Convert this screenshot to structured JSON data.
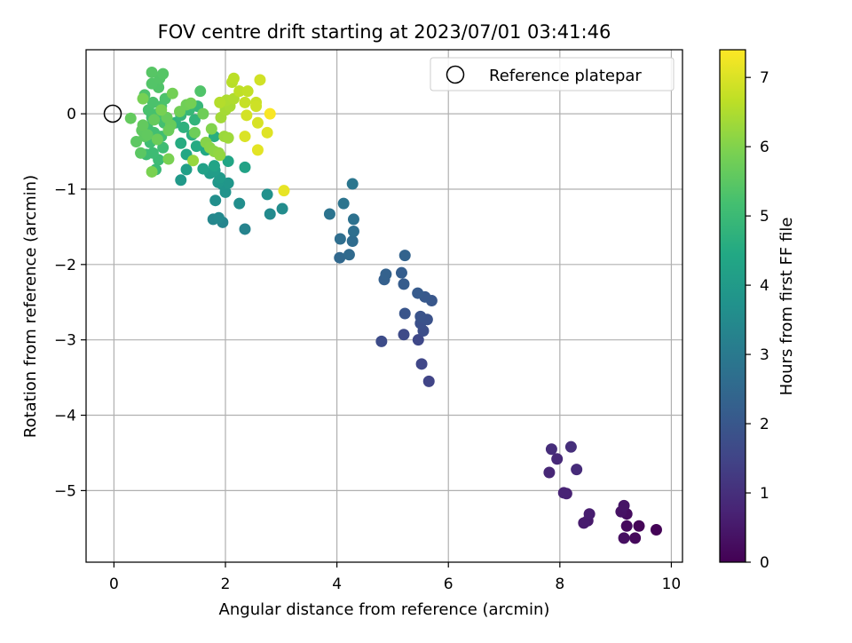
{
  "chart_data": {
    "type": "scatter",
    "title": "FOV centre drift starting at 2023/07/01 03:41:46",
    "xlabel": "Angular distance from reference (arcmin)",
    "ylabel": "Rotation from reference (arcmin)",
    "xlim": [
      -0.5,
      10.2
    ],
    "ylim": [
      -5.95,
      0.85
    ],
    "xticks": [
      0,
      2,
      4,
      6,
      8,
      10
    ],
    "yticks": [
      0,
      -1,
      -2,
      -3,
      -4,
      -5
    ],
    "grid": true,
    "legend": {
      "position": "top-right",
      "entries": [
        "Reference platepar"
      ]
    },
    "reference_point": {
      "x": 0,
      "y": 0
    },
    "colorbar": {
      "label": "Hours from first FF file",
      "colormap": "viridis",
      "range": [
        0,
        7.4
      ],
      "ticks": [
        0,
        1,
        2,
        3,
        4,
        5,
        6,
        7
      ]
    },
    "points": [
      {
        "x": 9.73,
        "y": -5.52,
        "c": 0.05
      },
      {
        "x": 9.42,
        "y": -5.47,
        "c": 0.1
      },
      {
        "x": 9.35,
        "y": -5.63,
        "c": 0.15
      },
      {
        "x": 9.2,
        "y": -5.47,
        "c": 0.2
      },
      {
        "x": 9.2,
        "y": -5.31,
        "c": 0.25
      },
      {
        "x": 9.15,
        "y": -5.63,
        "c": 0.3
      },
      {
        "x": 9.1,
        "y": -5.28,
        "c": 0.35
      },
      {
        "x": 9.15,
        "y": -5.2,
        "c": 0.4
      },
      {
        "x": 8.5,
        "y": -5.4,
        "c": 0.5
      },
      {
        "x": 8.43,
        "y": -5.43,
        "c": 0.55
      },
      {
        "x": 8.53,
        "y": -5.31,
        "c": 0.6
      },
      {
        "x": 8.12,
        "y": -5.04,
        "c": 0.7
      },
      {
        "x": 8.07,
        "y": -5.03,
        "c": 0.75
      },
      {
        "x": 7.81,
        "y": -4.76,
        "c": 0.8
      },
      {
        "x": 7.95,
        "y": -4.58,
        "c": 0.85
      },
      {
        "x": 8.3,
        "y": -4.72,
        "c": 0.9
      },
      {
        "x": 7.85,
        "y": -4.45,
        "c": 0.95
      },
      {
        "x": 8.2,
        "y": -4.42,
        "c": 1.0
      },
      {
        "x": 5.65,
        "y": -3.55,
        "c": 1.5
      },
      {
        "x": 5.52,
        "y": -3.32,
        "c": 1.55
      },
      {
        "x": 5.46,
        "y": -3.0,
        "c": 1.6
      },
      {
        "x": 5.2,
        "y": -2.93,
        "c": 1.65
      },
      {
        "x": 4.8,
        "y": -3.02,
        "c": 1.7
      },
      {
        "x": 5.55,
        "y": -2.88,
        "c": 1.75
      },
      {
        "x": 5.5,
        "y": -2.78,
        "c": 1.8
      },
      {
        "x": 5.62,
        "y": -2.73,
        "c": 1.85
      },
      {
        "x": 5.5,
        "y": -2.69,
        "c": 1.9
      },
      {
        "x": 5.22,
        "y": -2.65,
        "c": 1.95
      },
      {
        "x": 5.7,
        "y": -2.48,
        "c": 2.0
      },
      {
        "x": 5.58,
        "y": -2.43,
        "c": 2.05
      },
      {
        "x": 5.45,
        "y": -2.38,
        "c": 2.1
      },
      {
        "x": 5.2,
        "y": -2.26,
        "c": 2.15
      },
      {
        "x": 5.16,
        "y": -2.11,
        "c": 2.2
      },
      {
        "x": 4.85,
        "y": -2.2,
        "c": 2.25
      },
      {
        "x": 4.88,
        "y": -2.13,
        "c": 2.3
      },
      {
        "x": 5.22,
        "y": -1.88,
        "c": 2.35
      },
      {
        "x": 4.05,
        "y": -1.91,
        "c": 2.5
      },
      {
        "x": 4.22,
        "y": -1.87,
        "c": 2.55
      },
      {
        "x": 4.28,
        "y": -1.69,
        "c": 2.6
      },
      {
        "x": 4.06,
        "y": -1.66,
        "c": 2.65
      },
      {
        "x": 4.3,
        "y": -1.56,
        "c": 2.7
      },
      {
        "x": 4.3,
        "y": -1.4,
        "c": 2.75
      },
      {
        "x": 3.87,
        "y": -1.33,
        "c": 2.8
      },
      {
        "x": 4.12,
        "y": -1.19,
        "c": 2.85
      },
      {
        "x": 4.28,
        "y": -0.93,
        "c": 2.9
      },
      {
        "x": 2.35,
        "y": -1.53,
        "c": 3.3
      },
      {
        "x": 1.95,
        "y": -1.44,
        "c": 3.35
      },
      {
        "x": 1.78,
        "y": -1.4,
        "c": 3.4
      },
      {
        "x": 1.88,
        "y": -1.38,
        "c": 3.45
      },
      {
        "x": 2.8,
        "y": -1.33,
        "c": 3.5
      },
      {
        "x": 3.02,
        "y": -1.26,
        "c": 3.55
      },
      {
        "x": 2.25,
        "y": -1.19,
        "c": 3.6
      },
      {
        "x": 1.82,
        "y": -1.15,
        "c": 3.65
      },
      {
        "x": 2.75,
        "y": -1.07,
        "c": 3.7
      },
      {
        "x": 2.0,
        "y": -1.04,
        "c": 3.75
      },
      {
        "x": 1.95,
        "y": -0.94,
        "c": 3.8
      },
      {
        "x": 2.05,
        "y": -0.92,
        "c": 3.85
      },
      {
        "x": 1.87,
        "y": -0.91,
        "c": 3.9
      },
      {
        "x": 1.2,
        "y": -0.88,
        "c": 3.95
      },
      {
        "x": 1.9,
        "y": -0.85,
        "c": 4.0
      },
      {
        "x": 1.72,
        "y": -0.79,
        "c": 4.05
      },
      {
        "x": 1.81,
        "y": -0.75,
        "c": 4.1
      },
      {
        "x": 1.3,
        "y": -0.74,
        "c": 4.15
      },
      {
        "x": 1.6,
        "y": -0.73,
        "c": 4.2
      },
      {
        "x": 2.35,
        "y": -0.71,
        "c": 4.25
      },
      {
        "x": 1.8,
        "y": -0.69,
        "c": 4.3
      },
      {
        "x": 2.05,
        "y": -0.63,
        "c": 4.35
      },
      {
        "x": 1.3,
        "y": -0.54,
        "c": 4.4
      },
      {
        "x": 1.65,
        "y": -0.48,
        "c": 4.45
      },
      {
        "x": 1.48,
        "y": -0.43,
        "c": 4.5
      },
      {
        "x": 1.2,
        "y": -0.39,
        "c": 4.55
      },
      {
        "x": 1.8,
        "y": -0.3,
        "c": 4.6
      },
      {
        "x": 1.4,
        "y": -0.28,
        "c": 4.65
      },
      {
        "x": 1.25,
        "y": -0.18,
        "c": 4.7
      },
      {
        "x": 1.1,
        "y": -0.12,
        "c": 4.75
      },
      {
        "x": 1.45,
        "y": -0.08,
        "c": 4.8
      },
      {
        "x": 1.2,
        "y": -0.02,
        "c": 4.85
      },
      {
        "x": 1.5,
        "y": 0.1,
        "c": 4.9
      },
      {
        "x": 1.35,
        "y": 0.05,
        "c": 4.95
      },
      {
        "x": 0.75,
        "y": -0.74,
        "c": 5.0
      },
      {
        "x": 0.8,
        "y": -0.61,
        "c": 5.02
      },
      {
        "x": 0.7,
        "y": -0.52,
        "c": 5.04
      },
      {
        "x": 0.58,
        "y": -0.54,
        "c": 5.06
      },
      {
        "x": 0.88,
        "y": -0.45,
        "c": 5.08
      },
      {
        "x": 0.65,
        "y": -0.38,
        "c": 5.1
      },
      {
        "x": 0.85,
        "y": -0.3,
        "c": 5.12
      },
      {
        "x": 0.72,
        "y": -0.25,
        "c": 5.14
      },
      {
        "x": 0.6,
        "y": -0.18,
        "c": 5.16
      },
      {
        "x": 0.9,
        "y": -0.12,
        "c": 5.18
      },
      {
        "x": 0.68,
        "y": -0.05,
        "c": 5.2
      },
      {
        "x": 0.78,
        "y": 0.0,
        "c": 5.22
      },
      {
        "x": 0.62,
        "y": 0.05,
        "c": 5.24
      },
      {
        "x": 0.85,
        "y": 0.1,
        "c": 5.26
      },
      {
        "x": 0.7,
        "y": 0.15,
        "c": 5.28
      },
      {
        "x": 0.92,
        "y": 0.2,
        "c": 5.3
      },
      {
        "x": 0.55,
        "y": 0.25,
        "c": 5.32
      },
      {
        "x": 1.55,
        "y": 0.3,
        "c": 5.34
      },
      {
        "x": 0.8,
        "y": 0.35,
        "c": 5.36
      },
      {
        "x": 0.68,
        "y": 0.4,
        "c": 5.38
      },
      {
        "x": 0.82,
        "y": 0.47,
        "c": 5.4
      },
      {
        "x": 0.88,
        "y": 0.53,
        "c": 5.42
      },
      {
        "x": 0.68,
        "y": 0.55,
        "c": 5.44
      },
      {
        "x": 0.48,
        "y": -0.52,
        "c": 5.5
      },
      {
        "x": 0.4,
        "y": -0.37,
        "c": 5.52
      },
      {
        "x": 0.55,
        "y": -0.3,
        "c": 5.54
      },
      {
        "x": 0.5,
        "y": -0.22,
        "c": 5.56
      },
      {
        "x": 0.6,
        "y": -0.28,
        "c": 5.58
      },
      {
        "x": 0.52,
        "y": -0.15,
        "c": 5.6
      },
      {
        "x": 0.3,
        "y": -0.06,
        "c": 5.62
      },
      {
        "x": 0.72,
        "y": -0.08,
        "c": 5.64
      },
      {
        "x": 0.95,
        "y": -0.05,
        "c": 5.66
      },
      {
        "x": 1.02,
        "y": -0.15,
        "c": 5.68
      },
      {
        "x": 0.98,
        "y": -0.22,
        "c": 5.7
      },
      {
        "x": 0.78,
        "y": -0.34,
        "c": 5.72
      },
      {
        "x": 1.45,
        "y": -0.25,
        "c": 5.74
      },
      {
        "x": 1.6,
        "y": 0.0,
        "c": 5.76
      },
      {
        "x": 1.3,
        "y": 0.12,
        "c": 5.78
      },
      {
        "x": 1.18,
        "y": 0.03,
        "c": 5.8
      },
      {
        "x": 1.05,
        "y": 0.27,
        "c": 5.82
      },
      {
        "x": 1.38,
        "y": 0.14,
        "c": 5.84
      },
      {
        "x": 0.52,
        "y": 0.2,
        "c": 5.86
      },
      {
        "x": 0.85,
        "y": 0.05,
        "c": 5.88
      },
      {
        "x": 0.98,
        "y": -0.6,
        "c": 5.9
      },
      {
        "x": 0.68,
        "y": -0.77,
        "c": 5.92
      },
      {
        "x": 1.75,
        "y": -0.2,
        "c": 6.0
      },
      {
        "x": 1.65,
        "y": -0.38,
        "c": 6.04
      },
      {
        "x": 1.72,
        "y": -0.45,
        "c": 6.08
      },
      {
        "x": 1.8,
        "y": -0.5,
        "c": 6.12
      },
      {
        "x": 1.88,
        "y": -0.52,
        "c": 6.16
      },
      {
        "x": 1.9,
        "y": -0.55,
        "c": 6.2
      },
      {
        "x": 1.42,
        "y": -0.62,
        "c": 6.24
      },
      {
        "x": 1.98,
        "y": -0.3,
        "c": 6.28
      },
      {
        "x": 2.05,
        "y": -0.32,
        "c": 6.32
      },
      {
        "x": 1.92,
        "y": -0.05,
        "c": 6.36
      },
      {
        "x": 2.0,
        "y": 0.05,
        "c": 6.4
      },
      {
        "x": 2.08,
        "y": 0.1,
        "c": 6.44
      },
      {
        "x": 2.02,
        "y": 0.18,
        "c": 6.48
      },
      {
        "x": 2.15,
        "y": 0.2,
        "c": 6.52
      },
      {
        "x": 1.9,
        "y": 0.15,
        "c": 6.56
      },
      {
        "x": 2.12,
        "y": 0.42,
        "c": 6.6
      },
      {
        "x": 2.15,
        "y": 0.47,
        "c": 6.64
      },
      {
        "x": 2.25,
        "y": 0.3,
        "c": 6.68
      },
      {
        "x": 2.4,
        "y": 0.3,
        "c": 6.72
      },
      {
        "x": 2.35,
        "y": 0.15,
        "c": 6.76
      },
      {
        "x": 2.55,
        "y": 0.15,
        "c": 6.8
      },
      {
        "x": 2.55,
        "y": 0.1,
        "c": 6.84
      },
      {
        "x": 2.62,
        "y": 0.45,
        "c": 6.88
      },
      {
        "x": 2.38,
        "y": -0.02,
        "c": 6.92
      },
      {
        "x": 2.58,
        "y": -0.12,
        "c": 6.96
      },
      {
        "x": 2.35,
        "y": -0.3,
        "c": 7.0
      },
      {
        "x": 2.75,
        "y": -0.25,
        "c": 7.05
      },
      {
        "x": 2.58,
        "y": -0.48,
        "c": 7.1
      },
      {
        "x": 3.05,
        "y": -1.02,
        "c": 7.15
      },
      {
        "x": 2.8,
        "y": 0.0,
        "c": 7.35
      }
    ]
  }
}
